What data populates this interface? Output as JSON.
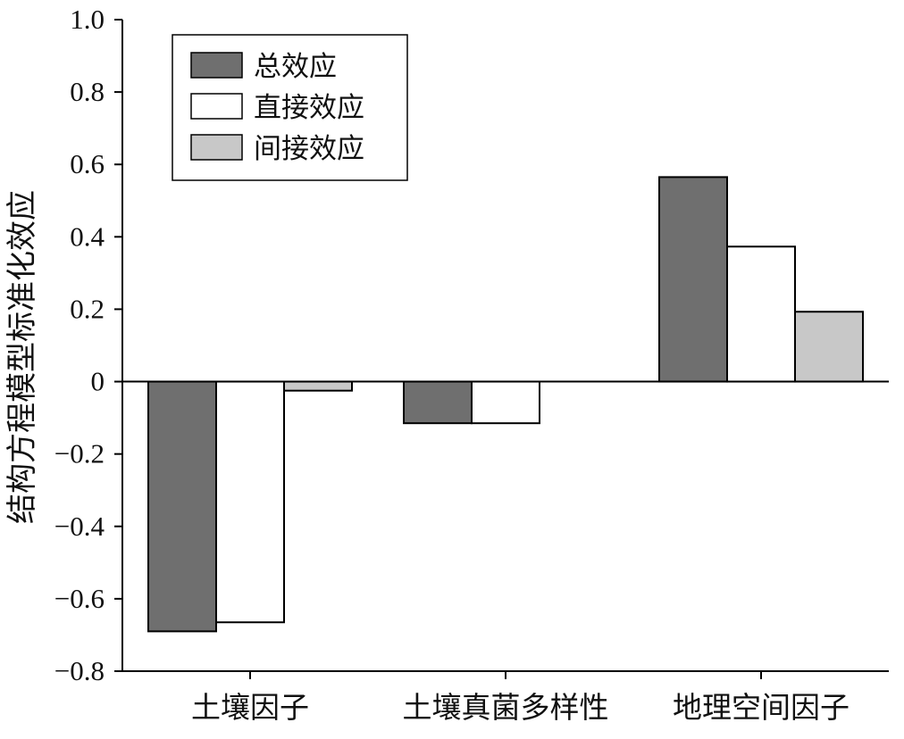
{
  "chart_data": {
    "type": "bar",
    "title": "",
    "xlabel": "",
    "ylabel": "结构方程模型标准化效应",
    "ylim": [
      -0.8,
      1.0
    ],
    "yticks": [
      1.0,
      0.8,
      0.6,
      0.4,
      0.2,
      0,
      -0.2,
      -0.4,
      -0.6,
      -0.8
    ],
    "ytick_labels": [
      "1.0",
      "0.8",
      "0.6",
      "0.4",
      "0.2",
      "0",
      "−0.2",
      "−0.4",
      "−0.6",
      "−0.8"
    ],
    "categories": [
      "土壤因子",
      "土壤真菌多样性",
      "地理空间因子"
    ],
    "series": [
      {
        "name": "总效应",
        "color": "#6f6f6f",
        "values": [
          -0.69,
          -0.115,
          0.565
        ]
      },
      {
        "name": "直接效应",
        "color": "#ffffff",
        "values": [
          -0.665,
          -0.115,
          0.373
        ]
      },
      {
        "name": "间接效应",
        "color": "#c8c8c8",
        "values": [
          -0.025,
          0,
          0.193
        ]
      }
    ],
    "legend_position": "top-left",
    "grid": false
  }
}
